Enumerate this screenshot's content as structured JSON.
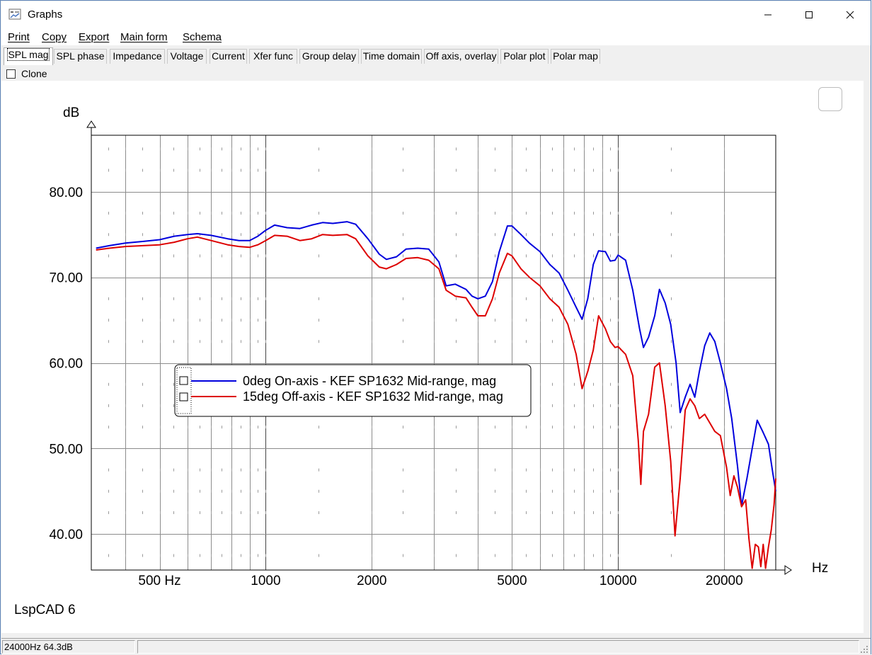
{
  "window": {
    "title": "Graphs",
    "minimize_glyph": "—",
    "maximize_glyph": "☐",
    "close_glyph": "✕"
  },
  "menu": [
    "Print",
    "Copy",
    "Export",
    "Main form",
    "Schema"
  ],
  "tabs": [
    "SPL mag",
    "SPL phase",
    "Impedance",
    "Voltage",
    "Current",
    "Xfer func",
    "Group delay",
    "Time domain",
    "Off axis, overlay",
    "Polar plot",
    "Polar map"
  ],
  "selected_tab": "SPL mag",
  "clone": {
    "label": "Clone",
    "checked": false
  },
  "status": {
    "readout": "24000Hz 64.3dB",
    "second": ""
  },
  "app_label": "LspCAD 6",
  "chart_data": {
    "type": "line",
    "xscale": "log",
    "xlabel": "Hz",
    "ylabel": "dB",
    "xlim": [
      320,
      28000
    ],
    "ylim": [
      35.8,
      86.6
    ],
    "yticks": [
      40,
      50,
      60,
      70,
      80
    ],
    "ytick_labels": [
      "40.00",
      "50.00",
      "60.00",
      "70.00",
      "80.00"
    ],
    "xtick_labels": [
      {
        "x": 500,
        "label": "500 Hz"
      },
      {
        "x": 1000,
        "label": "1000"
      },
      {
        "x": 2000,
        "label": "2000"
      },
      {
        "x": 5000,
        "label": "5000"
      },
      {
        "x": 10000,
        "label": "10000"
      },
      {
        "x": 20000,
        "label": "20000"
      }
    ],
    "grid": true,
    "legend_position": "center-left",
    "series": [
      {
        "name": "0deg On-axis - KEF SP1632 Mid-range, mag",
        "color": "#0000dd",
        "points": [
          [
            330,
            73.4
          ],
          [
            360,
            73.7
          ],
          [
            400,
            74.0
          ],
          [
            450,
            74.2
          ],
          [
            500,
            74.4
          ],
          [
            550,
            74.8
          ],
          [
            600,
            75.0
          ],
          [
            640,
            75.1
          ],
          [
            700,
            74.9
          ],
          [
            780,
            74.5
          ],
          [
            840,
            74.3
          ],
          [
            900,
            74.3
          ],
          [
            950,
            74.8
          ],
          [
            1000,
            75.5
          ],
          [
            1060,
            76.1
          ],
          [
            1150,
            75.8
          ],
          [
            1250,
            75.7
          ],
          [
            1350,
            76.1
          ],
          [
            1450,
            76.4
          ],
          [
            1550,
            76.3
          ],
          [
            1700,
            76.5
          ],
          [
            1800,
            76.2
          ],
          [
            1950,
            74.5
          ],
          [
            2100,
            72.7
          ],
          [
            2200,
            72.1
          ],
          [
            2350,
            72.4
          ],
          [
            2500,
            73.3
          ],
          [
            2700,
            73.4
          ],
          [
            2900,
            73.3
          ],
          [
            3100,
            71.8
          ],
          [
            3250,
            69.0
          ],
          [
            3450,
            69.2
          ],
          [
            3700,
            68.6
          ],
          [
            3850,
            67.8
          ],
          [
            4000,
            67.5
          ],
          [
            4200,
            67.8
          ],
          [
            4400,
            69.5
          ],
          [
            4600,
            73.0
          ],
          [
            4850,
            76.0
          ],
          [
            5000,
            76.0
          ],
          [
            5300,
            75.0
          ],
          [
            5600,
            74.0
          ],
          [
            6000,
            73.0
          ],
          [
            6400,
            71.5
          ],
          [
            6800,
            70.5
          ],
          [
            7200,
            68.5
          ],
          [
            7600,
            66.5
          ],
          [
            7900,
            65.1
          ],
          [
            8200,
            67.5
          ],
          [
            8500,
            71.5
          ],
          [
            8800,
            73.1
          ],
          [
            9200,
            73.0
          ],
          [
            9500,
            71.9
          ],
          [
            9800,
            72.0
          ],
          [
            10000,
            72.6
          ],
          [
            10500,
            72.0
          ],
          [
            11000,
            68.5
          ],
          [
            11500,
            64.0
          ],
          [
            11800,
            61.8
          ],
          [
            12200,
            63.0
          ],
          [
            12700,
            65.5
          ],
          [
            13100,
            68.6
          ],
          [
            13600,
            67.0
          ],
          [
            14100,
            64.5
          ],
          [
            14600,
            60.0
          ],
          [
            15000,
            54.2
          ],
          [
            15500,
            56.0
          ],
          [
            16000,
            57.5
          ],
          [
            16500,
            56.0
          ],
          [
            17000,
            59.0
          ],
          [
            17600,
            62.0
          ],
          [
            18200,
            63.5
          ],
          [
            18800,
            62.5
          ],
          [
            19500,
            60.0
          ],
          [
            20300,
            57.0
          ],
          [
            21000,
            53.5
          ],
          [
            21800,
            48.0
          ],
          [
            22400,
            43.3
          ],
          [
            23200,
            46.5
          ],
          [
            24000,
            50.0
          ],
          [
            24800,
            53.3
          ],
          [
            25700,
            52.0
          ],
          [
            26700,
            50.5
          ],
          [
            27500,
            47.0
          ],
          [
            28000,
            45.0
          ]
        ]
      },
      {
        "name": "15deg Off-axis - KEF SP1632 Mid-range, mag",
        "color": "#dd0000",
        "points": [
          [
            330,
            73.2
          ],
          [
            360,
            73.4
          ],
          [
            400,
            73.6
          ],
          [
            450,
            73.7
          ],
          [
            500,
            73.8
          ],
          [
            550,
            74.1
          ],
          [
            600,
            74.5
          ],
          [
            640,
            74.7
          ],
          [
            700,
            74.3
          ],
          [
            780,
            73.8
          ],
          [
            840,
            73.6
          ],
          [
            900,
            73.5
          ],
          [
            950,
            73.8
          ],
          [
            1000,
            74.3
          ],
          [
            1060,
            74.9
          ],
          [
            1150,
            74.8
          ],
          [
            1250,
            74.3
          ],
          [
            1350,
            74.5
          ],
          [
            1450,
            75.0
          ],
          [
            1550,
            74.9
          ],
          [
            1700,
            75.0
          ],
          [
            1800,
            74.5
          ],
          [
            1950,
            72.5
          ],
          [
            2100,
            71.2
          ],
          [
            2200,
            71.0
          ],
          [
            2350,
            71.5
          ],
          [
            2500,
            72.2
          ],
          [
            2700,
            72.3
          ],
          [
            2900,
            72.0
          ],
          [
            3100,
            71.0
          ],
          [
            3250,
            68.5
          ],
          [
            3450,
            67.8
          ],
          [
            3700,
            67.6
          ],
          [
            3850,
            66.5
          ],
          [
            4000,
            65.5
          ],
          [
            4200,
            65.5
          ],
          [
            4400,
            67.5
          ],
          [
            4600,
            70.5
          ],
          [
            4850,
            72.8
          ],
          [
            5000,
            72.5
          ],
          [
            5300,
            71.0
          ],
          [
            5600,
            70.0
          ],
          [
            6000,
            69.0
          ],
          [
            6400,
            67.5
          ],
          [
            6800,
            66.5
          ],
          [
            7200,
            64.5
          ],
          [
            7600,
            61.0
          ],
          [
            7900,
            57.0
          ],
          [
            8200,
            59.0
          ],
          [
            8500,
            61.5
          ],
          [
            8800,
            65.5
          ],
          [
            9200,
            64.0
          ],
          [
            9500,
            62.5
          ],
          [
            9800,
            61.8
          ],
          [
            10000,
            61.9
          ],
          [
            10500,
            61.0
          ],
          [
            11000,
            58.5
          ],
          [
            11400,
            51.0
          ],
          [
            11600,
            45.8
          ],
          [
            11800,
            52.0
          ],
          [
            12200,
            54.0
          ],
          [
            12700,
            59.5
          ],
          [
            13100,
            60.0
          ],
          [
            13600,
            55.0
          ],
          [
            14100,
            48.5
          ],
          [
            14500,
            39.8
          ],
          [
            15000,
            46.5
          ],
          [
            15500,
            54.5
          ],
          [
            16000,
            55.8
          ],
          [
            16500,
            55.0
          ],
          [
            17000,
            53.5
          ],
          [
            17600,
            54.0
          ],
          [
            18200,
            53.0
          ],
          [
            18800,
            52.0
          ],
          [
            19500,
            51.5
          ],
          [
            20300,
            47.8
          ],
          [
            20800,
            44.5
          ],
          [
            21300,
            46.8
          ],
          [
            21800,
            45.5
          ],
          [
            22400,
            43.2
          ],
          [
            23000,
            44.0
          ],
          [
            23500,
            39.5
          ],
          [
            24000,
            36.0
          ],
          [
            24500,
            38.8
          ],
          [
            25000,
            38.5
          ],
          [
            25400,
            36.2
          ],
          [
            25800,
            38.8
          ],
          [
            26200,
            36.0
          ],
          [
            26700,
            38.5
          ],
          [
            27200,
            40.5
          ],
          [
            27700,
            43.5
          ],
          [
            28000,
            46.5
          ]
        ]
      }
    ]
  }
}
